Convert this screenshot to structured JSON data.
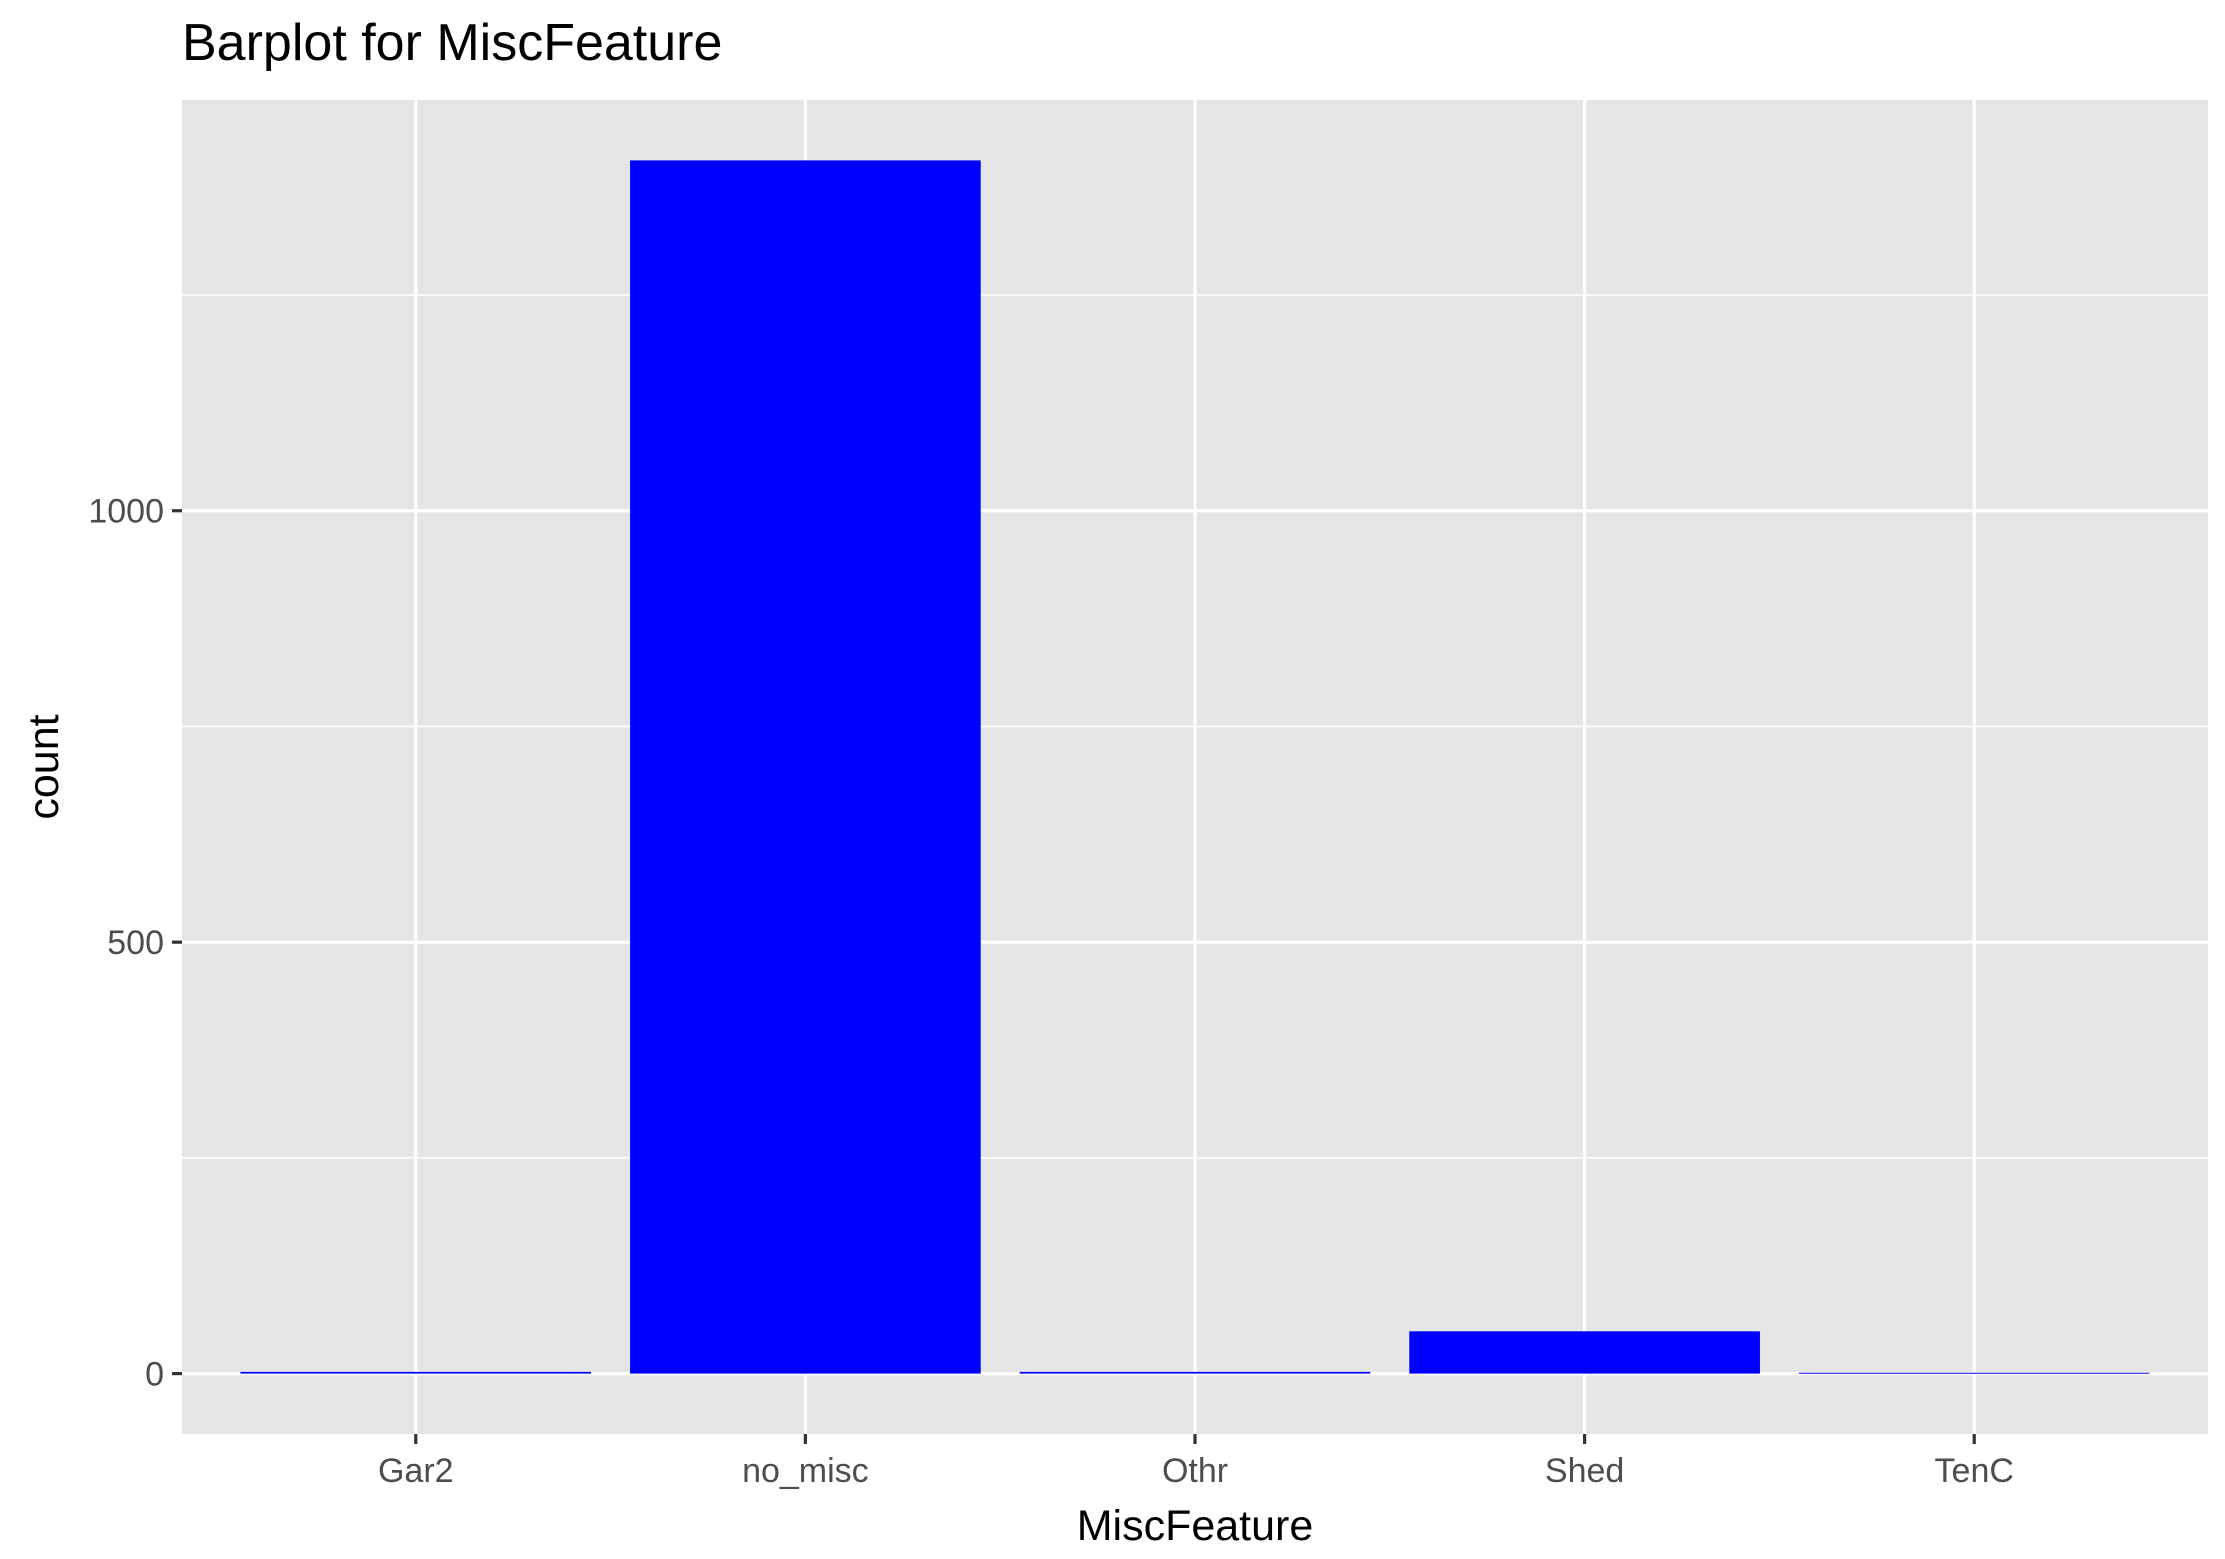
{
  "chart_data": {
    "type": "bar",
    "title": "Barplot for MiscFeature",
    "xlabel": "MiscFeature",
    "ylabel": "count",
    "categories": [
      "Gar2",
      "no_misc",
      "Othr",
      "Shed",
      "TenC"
    ],
    "values": [
      2,
      1406,
      2,
      49,
      1
    ],
    "yticks": [
      0,
      500,
      1000
    ],
    "ylim": [
      -70,
      1476
    ],
    "bar_color": "#0000ff",
    "panel_color": "#e5e5e5",
    "grid": true,
    "legend": "none"
  }
}
